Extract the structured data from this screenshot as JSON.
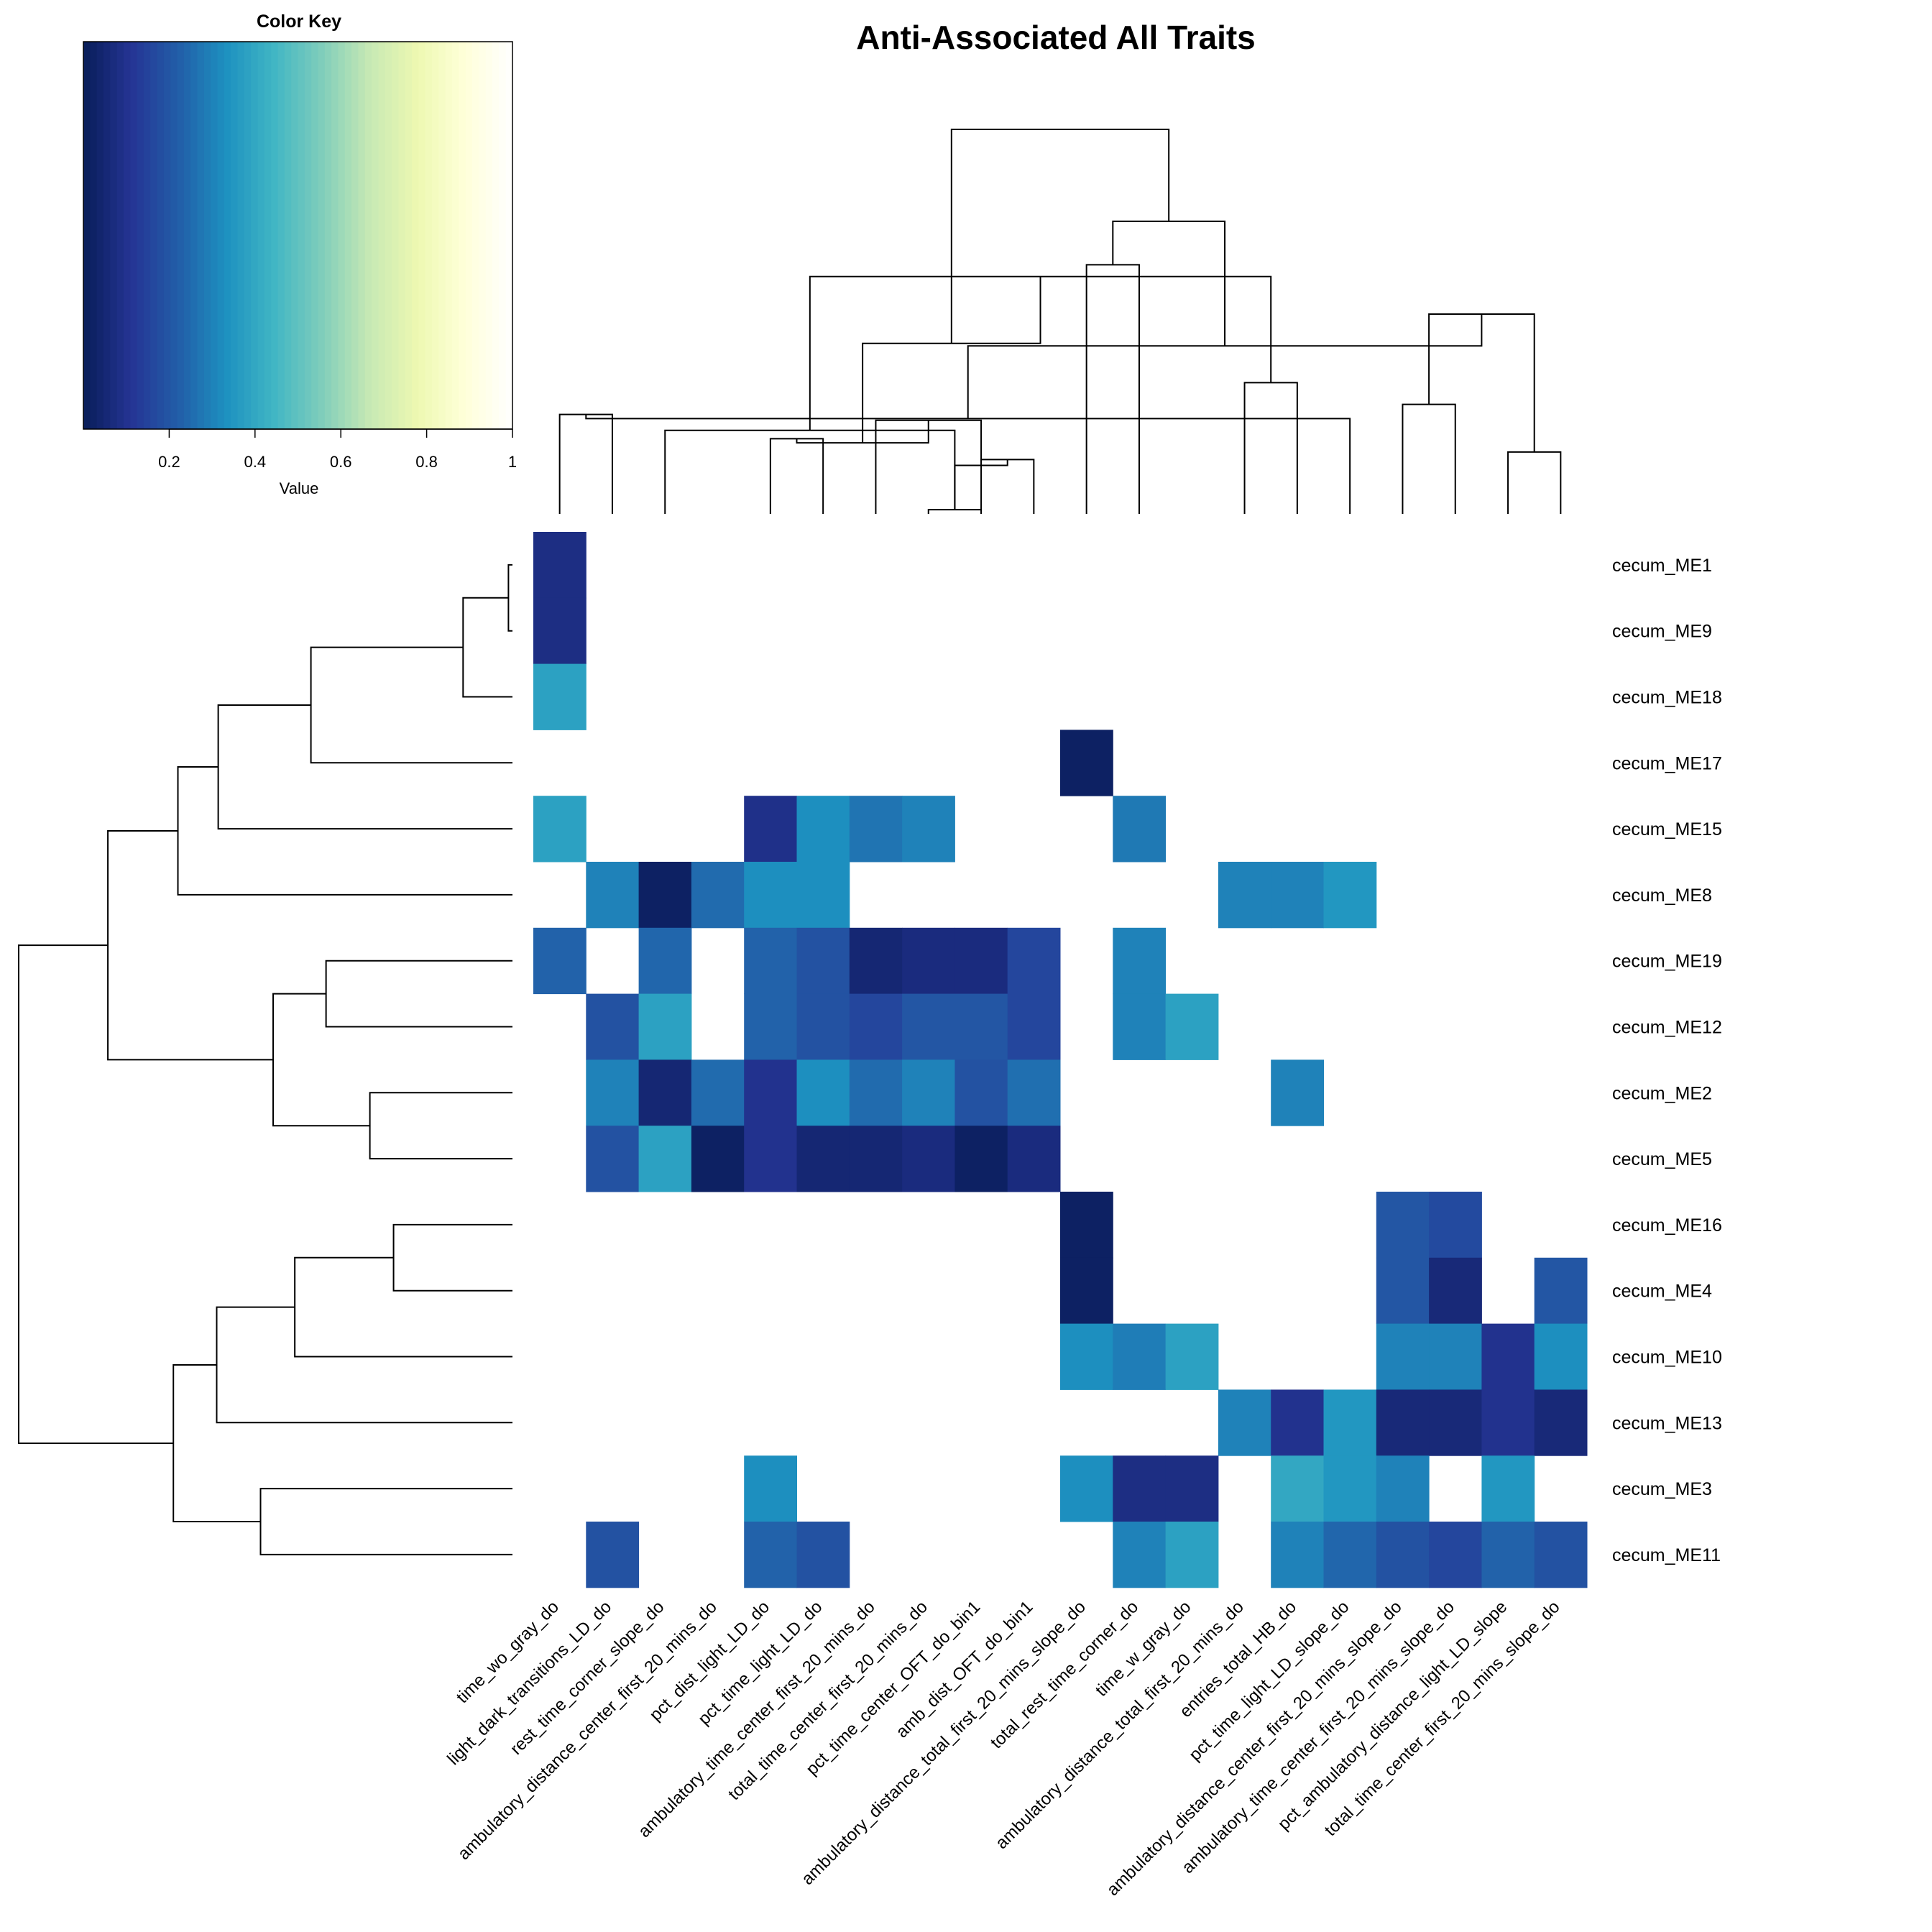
{
  "chart_data": {
    "type": "heatmap",
    "title": "Anti-Associated All Traits",
    "color_key": {
      "title": "Color Key",
      "xlabel": "Value",
      "ticks": [
        "0.2",
        "0.4",
        "0.6",
        "0.8",
        "1"
      ],
      "range": [
        0,
        1
      ],
      "palette": "YlGnBu",
      "colors": [
        "#081d58",
        "#253494",
        "#225ea8",
        "#1d91c0",
        "#41b6c4",
        "#7fcdbb",
        "#c7e9b4",
        "#edf8b1",
        "#ffffd9",
        "#ffffff"
      ]
    },
    "na_color": "#ffffff",
    "columns": [
      "time_wo_gray_do",
      "light_dark_transitions_LD_do",
      "rest_time_corner_slope_do",
      "ambulatory_distance_center_first_20_mins_do",
      "pct_dist_light_LD_do",
      "pct_time_light_LD_do",
      "ambulatory_time_center_first_20_mins_do",
      "total_time_center_first_20_mins_do",
      "pct_time_center_OFT_do_bin1",
      "amb_dist_OFT_do_bin1",
      "ambulatory_distance_total_first_20_mins_slope_do",
      "total_rest_time_corner_do",
      "time_w_gray_do",
      "ambulatory_distance_total_first_20_mins_do",
      "entries_total_HB_do",
      "pct_time_light_LD_slope_do",
      "ambulatory_distance_center_first_20_mins_slope_do",
      "ambulatory_time_center_first_20_mins_slope_do",
      "pct_ambulatory_distance_light_LD_slope",
      "total_time_center_first_20_mins_slope_do"
    ],
    "rows": [
      "cecum_ME1",
      "cecum_ME9",
      "cecum_ME18",
      "cecum_ME17",
      "cecum_ME15",
      "cecum_ME8",
      "cecum_ME19",
      "cecum_ME12",
      "cecum_ME2",
      "cecum_ME5",
      "cecum_ME16",
      "cecum_ME4",
      "cecum_ME10",
      "cecum_ME13",
      "cecum_ME3",
      "cecum_ME11"
    ],
    "values": [
      [
        0.08,
        null,
        null,
        null,
        null,
        null,
        null,
        null,
        null,
        null,
        null,
        null,
        null,
        null,
        null,
        null,
        null,
        null,
        null,
        null
      ],
      [
        0.08,
        null,
        null,
        null,
        null,
        null,
        null,
        null,
        null,
        null,
        null,
        null,
        null,
        null,
        null,
        null,
        null,
        null,
        null,
        null
      ],
      [
        0.38,
        null,
        null,
        null,
        null,
        null,
        null,
        null,
        null,
        null,
        null,
        null,
        null,
        null,
        null,
        null,
        null,
        null,
        null,
        null
      ],
      [
        null,
        null,
        null,
        null,
        null,
        null,
        null,
        null,
        null,
        null,
        0.02,
        null,
        null,
        null,
        null,
        null,
        null,
        null,
        null,
        null
      ],
      [
        0.38,
        null,
        null,
        null,
        0.09,
        0.33,
        0.27,
        0.3,
        null,
        null,
        null,
        0.28,
        null,
        null,
        null,
        null,
        null,
        null,
        null,
        null
      ],
      [
        null,
        0.3,
        0.02,
        0.25,
        0.33,
        0.33,
        null,
        null,
        null,
        null,
        null,
        null,
        null,
        0.3,
        0.3,
        0.35,
        null,
        null,
        null,
        null
      ],
      [
        0.23,
        null,
        0.24,
        null,
        0.23,
        0.19,
        0.05,
        0.07,
        0.07,
        0.16,
        null,
        0.3,
        null,
        null,
        null,
        null,
        null,
        null,
        null,
        null
      ],
      [
        null,
        0.19,
        0.38,
        null,
        0.23,
        0.19,
        0.16,
        0.2,
        0.2,
        0.16,
        null,
        0.3,
        0.38,
        null,
        null,
        null,
        null,
        null,
        null,
        null
      ],
      [
        null,
        0.3,
        0.05,
        0.25,
        0.1,
        0.33,
        0.25,
        0.3,
        0.19,
        0.26,
        null,
        null,
        null,
        null,
        0.3,
        null,
        null,
        null,
        null,
        null
      ],
      [
        null,
        0.19,
        0.38,
        0.02,
        0.1,
        0.05,
        0.05,
        0.07,
        0.02,
        0.07,
        null,
        null,
        null,
        null,
        null,
        null,
        null,
        null,
        null,
        null
      ],
      [
        null,
        null,
        null,
        null,
        null,
        null,
        null,
        null,
        null,
        null,
        0.02,
        null,
        null,
        null,
        null,
        null,
        0.2,
        0.17,
        null,
        null
      ],
      [
        null,
        null,
        null,
        null,
        null,
        null,
        null,
        null,
        null,
        null,
        0.02,
        null,
        null,
        null,
        null,
        null,
        0.2,
        0.06,
        null,
        0.2
      ],
      [
        null,
        null,
        null,
        null,
        null,
        null,
        null,
        null,
        null,
        null,
        0.33,
        0.29,
        0.38,
        null,
        null,
        null,
        0.3,
        0.3,
        0.1,
        0.33
      ],
      [
        null,
        null,
        null,
        null,
        null,
        null,
        null,
        null,
        null,
        null,
        null,
        null,
        null,
        0.3,
        0.1,
        0.35,
        0.06,
        0.06,
        0.1,
        0.06
      ],
      [
        null,
        null,
        null,
        null,
        0.33,
        null,
        null,
        null,
        null,
        null,
        0.33,
        0.08,
        0.08,
        null,
        0.4,
        0.35,
        0.3,
        null,
        0.35,
        null
      ],
      [
        null,
        0.19,
        null,
        null,
        0.23,
        0.19,
        null,
        null,
        null,
        null,
        null,
        0.3,
        0.38,
        null,
        0.3,
        0.24,
        0.19,
        0.16,
        0.23,
        0.19
      ]
    ]
  }
}
